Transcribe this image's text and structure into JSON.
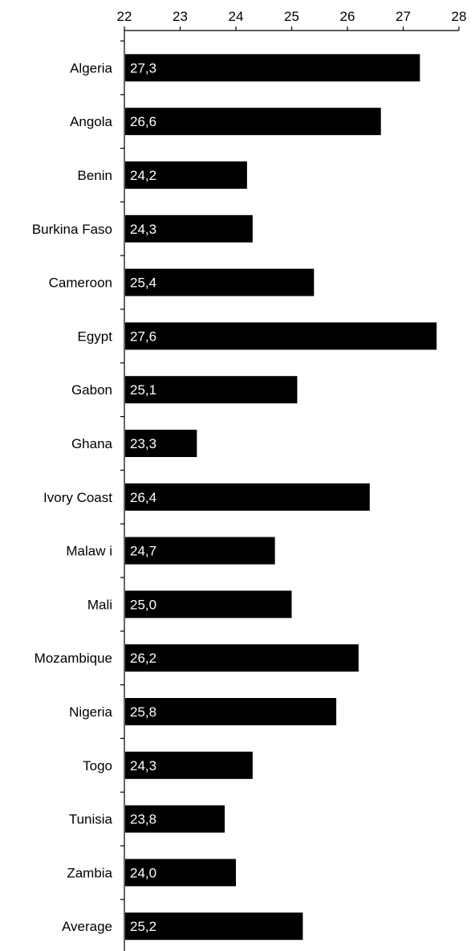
{
  "chart_data": {
    "type": "bar",
    "orientation": "horizontal",
    "title": "",
    "xlabel": "",
    "ylabel": "",
    "xlim": [
      22,
      28
    ],
    "x_ticks": [
      22,
      23,
      24,
      25,
      26,
      27,
      28
    ],
    "x_axis_position": "top",
    "grid": false,
    "legend": "none",
    "bar_color": "#000000",
    "label_color": "#ffffff",
    "categories": [
      "Algeria",
      "Angola",
      "Benin",
      "Burkina Faso",
      "Cameroon",
      "Egypt",
      "Gabon",
      "Ghana",
      "Ivory Coast",
      "Malaw i",
      "Mali",
      "Mozambique",
      "Nigeria",
      "Togo",
      "Tunisia",
      "Zambia",
      "Average"
    ],
    "values": [
      27.3,
      26.6,
      24.2,
      24.3,
      25.4,
      27.6,
      25.1,
      23.3,
      26.4,
      24.7,
      25.0,
      26.2,
      25.8,
      24.3,
      23.8,
      24.0,
      25.2
    ],
    "data_labels": [
      "27,3",
      "26,6",
      "24,2",
      "24,3",
      "25,4",
      "27,6",
      "25,1",
      "23,3",
      "26,4",
      "24,7",
      "25,0",
      "26,2",
      "25,8",
      "24,3",
      "23,8",
      "24,0",
      "25,2"
    ]
  }
}
